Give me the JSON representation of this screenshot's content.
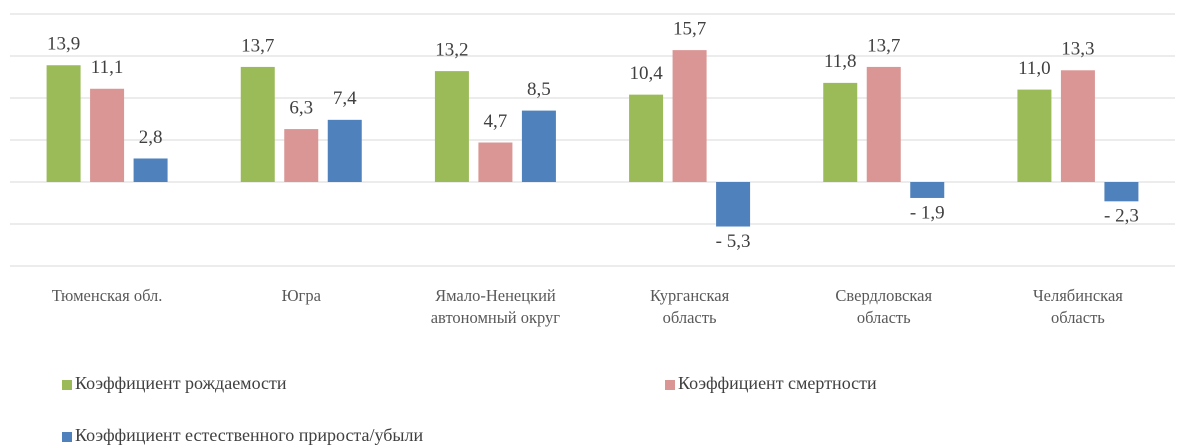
{
  "chart_data": {
    "type": "bar",
    "categories": [
      "Тюменская обл.",
      "Югра",
      "Ямало-Ненецкий\nавтономный округ",
      "Курганская\nобласть",
      "Свердловская\nобласть",
      "Челябинская\nобласть"
    ],
    "series": [
      {
        "name": "Коэффициент рождаемости",
        "color": "#9bbb59",
        "values": [
          13.9,
          13.7,
          13.2,
          10.4,
          11.8,
          11.0
        ],
        "value_labels": [
          "13,9",
          "13,7",
          "13,2",
          "10,4",
          "11,8",
          "11,0"
        ]
      },
      {
        "name": "Коэффициент смертности",
        "color": "#d99694",
        "values": [
          11.1,
          6.3,
          4.7,
          15.7,
          13.7,
          13.3
        ],
        "value_labels": [
          "11,1",
          "6,3",
          "4,7",
          "15,7",
          "13,7",
          "13,3"
        ]
      },
      {
        "name": "Коэффициент естественного прироста/убыли",
        "color": "#4f81bd",
        "values": [
          2.8,
          7.4,
          8.5,
          -5.3,
          -1.9,
          -2.3
        ],
        "value_labels": [
          "2,8",
          "7,4",
          "8,5",
          "- 5,3",
          "- 1,9",
          "- 2,3"
        ]
      }
    ],
    "ylim": [
      -10,
      20
    ],
    "yticks": [
      -10,
      -5,
      0,
      5,
      10,
      15,
      20
    ],
    "grid": true,
    "legend": "bottom"
  }
}
